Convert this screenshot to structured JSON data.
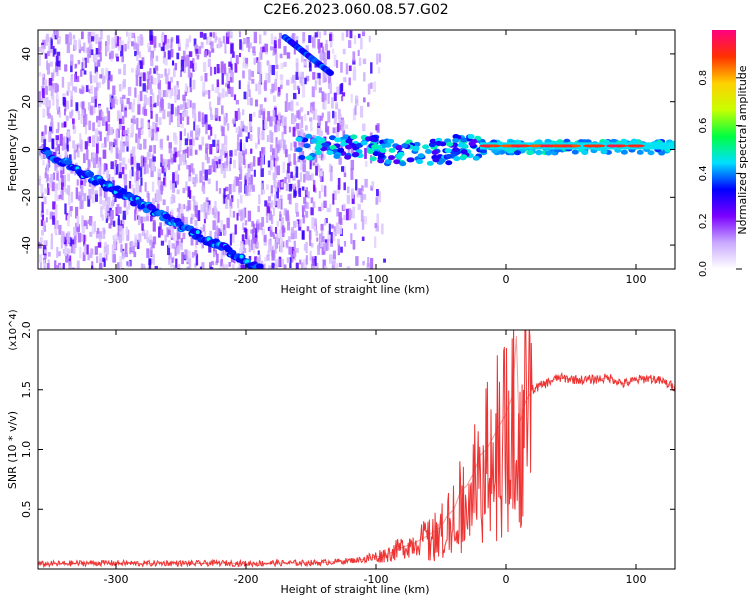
{
  "page": {
    "title": "C2E6.2023.060.08.57.G02"
  },
  "colorbar": {
    "label": "Normalized spectral amplitude",
    "ticks": [
      0.0,
      0.2,
      0.4,
      0.6,
      0.8
    ],
    "tick_labels": [
      "0.0",
      "0.2",
      "0.4",
      "0.6",
      "0.8"
    ],
    "colors": [
      "#ffffff",
      "#c9a8ff",
      "#7a00ff",
      "#0000ff",
      "#00e0ff",
      "#00ff40",
      "#c8ff00",
      "#ffd000",
      "#ff3000",
      "#ff0080"
    ]
  },
  "chart_data": [
    {
      "type": "heatmap",
      "xlabel": "Height of straight line (km)",
      "ylabel": "Frequency (Hz)",
      "xlim": [
        -360,
        130
      ],
      "ylim": [
        -50,
        50
      ],
      "xticks": [
        -300,
        -200,
        -100,
        0,
        100
      ],
      "xtick_labels": [
        "-300",
        "-200",
        "-100",
        "0",
        "100"
      ],
      "yticks": [
        -40,
        -20,
        0,
        20,
        40
      ],
      "ytick_labels": [
        "-40",
        "-20",
        "0",
        "20",
        "40"
      ],
      "features": {
        "diagonal_track": {
          "x": [
            -355,
            -188
          ],
          "y": [
            -1,
            -50
          ],
          "amplitude": 0.35
        },
        "upper_track": {
          "x": [
            -170,
            -135
          ],
          "y": [
            47,
            32
          ],
          "amplitude": 0.35
        },
        "central_band": {
          "x": [
            -160,
            130
          ],
          "y": [
            0,
            2
          ],
          "amplitude_range": [
            0.2,
            0.95
          ]
        },
        "peak_segment": {
          "x": [
            -20,
            120
          ],
          "y": [
            1.5,
            1.5
          ],
          "amplitude": 0.9
        }
      },
      "grid": false
    },
    {
      "type": "line",
      "xlabel": "Height of straight line (km)",
      "ylabel": "SNR (10 * v/v)",
      "y_multiplier": "(x10^4)",
      "xlim": [
        -360,
        130
      ],
      "ylim": [
        0,
        20000
      ],
      "xticks": [
        -300,
        -200,
        -100,
        0,
        100
      ],
      "xtick_labels": [
        "-300",
        "-200",
        "-100",
        "0",
        "100"
      ],
      "yticks": [
        5000,
        10000,
        15000,
        20000
      ],
      "ytick_labels": [
        "0.5",
        "1.0",
        "1.5",
        "2.0"
      ],
      "color": "#ee3333",
      "x": [
        -360,
        -340,
        -320,
        -300,
        -280,
        -260,
        -240,
        -220,
        -200,
        -180,
        -160,
        -140,
        -120,
        -110,
        -100,
        -90,
        -80,
        -70,
        -60,
        -50,
        -45,
        -40,
        -35,
        -30,
        -25,
        -20,
        -15,
        -10,
        -5,
        0,
        5,
        8,
        10,
        15,
        20,
        30,
        40,
        60,
        80,
        90,
        100,
        110,
        120,
        130
      ],
      "values": [
        400,
        450,
        500,
        500,
        450,
        500,
        450,
        500,
        450,
        500,
        500,
        550,
        700,
        800,
        1000,
        1300,
        1800,
        2200,
        2800,
        3500,
        4500,
        5000,
        6500,
        7000,
        8000,
        9500,
        10000,
        11000,
        12000,
        13000,
        14500,
        19500,
        12000,
        14000,
        15000,
        15500,
        16000,
        15800,
        16000,
        15500,
        15800,
        16000,
        15700,
        15200
      ],
      "grid": false
    }
  ]
}
